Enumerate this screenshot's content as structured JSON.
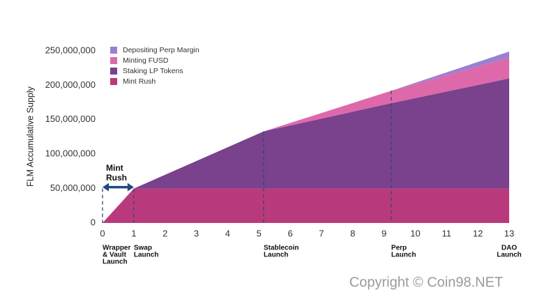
{
  "chart_data": {
    "type": "stacked-area",
    "y_label": "FLM Accumulative Supply",
    "x": [
      0,
      1,
      5.15,
      9.23,
      13
    ],
    "series": [
      {
        "name": "Mint Rush",
        "color": "#b93a7c",
        "values": [
          0,
          50000000,
          50000000,
          50000000,
          50000000
        ]
      },
      {
        "name": "Staking LP Tokens",
        "color": "#7a418d",
        "values": [
          0,
          0,
          83000000,
          124000000,
          160000000
        ]
      },
      {
        "name": "Minting FUSD",
        "color": "#de69aa",
        "values": [
          0,
          0,
          0,
          18000000,
          30000000
        ]
      },
      {
        "name": "Depositing Perp Margin",
        "color": "#9a80d2",
        "values": [
          0,
          0,
          0,
          0,
          9000000
        ]
      }
    ],
    "xlim": [
      0,
      13
    ],
    "xticks": [
      0,
      1,
      2,
      3,
      4,
      5,
      6,
      7,
      8,
      9,
      10,
      11,
      12,
      13
    ],
    "ylim": [
      0,
      250000000
    ],
    "yticks": [
      0,
      {
        "value": 50000000,
        "label": "50,000,000"
      },
      {
        "value": 100000000,
        "label": "100,000,000"
      },
      {
        "value": 150000000,
        "label": "150,000,000"
      },
      {
        "value": 200000000,
        "label": "200,000,000"
      },
      {
        "value": 250000000,
        "label": "250,000,000"
      }
    ],
    "milestones": [
      {
        "x": 0,
        "lines": [
          "Wrapper",
          "& Vault",
          "Launch"
        ],
        "dashed": true
      },
      {
        "x": 1,
        "lines": [
          "Swap",
          "Launch"
        ],
        "dashed": true
      },
      {
        "x": 5.15,
        "lines": [
          "Stablecoin",
          "Launch"
        ],
        "dashed": true
      },
      {
        "x": 9.23,
        "lines": [
          "Perp",
          "Launch"
        ],
        "dashed": true
      },
      {
        "x": 13,
        "lines": [
          "DAO",
          "Launch"
        ],
        "dashed": false
      }
    ],
    "annotation": {
      "lines": [
        "Mint",
        "Rush"
      ],
      "from": 0,
      "to": 1
    },
    "legend": "top-left"
  },
  "watermark": "Copyright © Coin98.NET"
}
